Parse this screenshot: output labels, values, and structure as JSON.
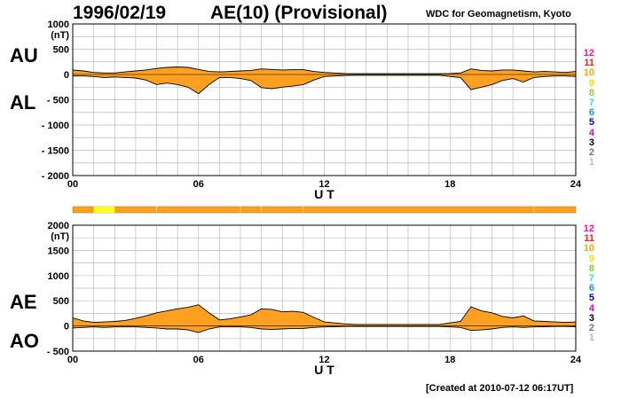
{
  "header": {
    "date": "1996/02/19",
    "title": "AE(10) (Provisional)",
    "source": "WDC for Geomagnetism, Kyoto",
    "created": "[Created at 2010-07-12 06:17UT]"
  },
  "colors": {
    "fill": "#ffa020",
    "grid": "#bbbbbb",
    "status_bar": "#ffa020",
    "status_highlight": "#ffff20"
  },
  "legend": {
    "items": [
      {
        "label": "12",
        "color": "#ff1493"
      },
      {
        "label": "11",
        "color": "#ff2020"
      },
      {
        "label": "10",
        "color": "#ffa500"
      },
      {
        "label": "9",
        "color": "#ffdd00"
      },
      {
        "label": "8",
        "color": "#9acd32"
      },
      {
        "label": "7",
        "color": "#40e0d0"
      },
      {
        "label": "6",
        "color": "#1e90ff"
      },
      {
        "label": "5",
        "color": "#0000cd"
      },
      {
        "label": "4",
        "color": "#dd00dd"
      },
      {
        "label": "3",
        "color": "#000000"
      },
      {
        "label": "2",
        "color": "#777777"
      },
      {
        "label": "1",
        "color": "#bbbbbb"
      }
    ]
  },
  "chart_data": [
    {
      "type": "area",
      "name": "AU/AL",
      "label_upper": "AU",
      "label_lower": "AL",
      "unit": "(nT)",
      "xlabel": "U T",
      "xlim": [
        0,
        24
      ],
      "ylim": [
        -2000,
        1000
      ],
      "yticks": [
        1000,
        500,
        0,
        -500,
        -1000,
        -1500,
        -2000
      ],
      "ytick_labels": [
        "1000",
        "500",
        "0",
        "- 500",
        "- 1000",
        "- 1500",
        "- 2000"
      ],
      "xticks": [
        0,
        6,
        12,
        18,
        24
      ],
      "xtick_labels": [
        "00",
        "06",
        "12",
        "18",
        "24"
      ],
      "grid": true,
      "x": [
        0,
        0.5,
        1,
        1.5,
        2,
        2.5,
        3,
        3.5,
        4,
        4.5,
        5,
        5.5,
        6,
        6.5,
        7,
        7.5,
        8,
        8.5,
        9,
        9.5,
        10,
        10.5,
        11,
        11.5,
        12,
        12.5,
        13,
        13.5,
        14,
        14.5,
        15,
        15.5,
        16,
        16.5,
        17,
        17.5,
        18,
        18.5,
        19,
        19.5,
        20,
        20.5,
        21,
        21.5,
        22,
        22.5,
        23,
        23.5,
        24
      ],
      "upper": [
        90,
        70,
        40,
        30,
        30,
        50,
        70,
        90,
        120,
        140,
        150,
        140,
        100,
        60,
        50,
        60,
        70,
        80,
        110,
        100,
        90,
        95,
        95,
        60,
        40,
        30,
        20,
        15,
        15,
        15,
        15,
        15,
        15,
        15,
        15,
        15,
        20,
        30,
        110,
        80,
        70,
        90,
        90,
        70,
        50,
        60,
        50,
        40,
        60
      ],
      "lower": [
        -30,
        -30,
        -40,
        -60,
        -50,
        -60,
        -70,
        -110,
        -200,
        -170,
        -200,
        -250,
        -380,
        -200,
        -60,
        -60,
        -80,
        -120,
        -260,
        -280,
        -250,
        -230,
        -200,
        -110,
        -40,
        -30,
        -20,
        -15,
        -15,
        -15,
        -15,
        -15,
        -15,
        -15,
        -15,
        -15,
        -40,
        -60,
        -300,
        -250,
        -200,
        -120,
        -80,
        -150,
        -60,
        -40,
        -30,
        -30,
        -40
      ]
    },
    {
      "type": "area",
      "name": "AE/AO",
      "label_upper": "AE",
      "label_lower": "AO",
      "unit": "(nT)",
      "xlabel": "U T",
      "xlim": [
        0,
        24
      ],
      "ylim": [
        -500,
        2000
      ],
      "yticks": [
        2000,
        1500,
        1000,
        500,
        0,
        -500
      ],
      "ytick_labels": [
        "2000",
        "1500",
        "1000",
        "500",
        "0",
        "- 500"
      ],
      "xticks": [
        0,
        6,
        12,
        18,
        24
      ],
      "xtick_labels": [
        "00",
        "06",
        "12",
        "18",
        "24"
      ],
      "grid": true,
      "x": [
        0,
        0.5,
        1,
        1.5,
        2,
        2.5,
        3,
        3.5,
        4,
        4.5,
        5,
        5.5,
        6,
        6.5,
        7,
        7.5,
        8,
        8.5,
        9,
        9.5,
        10,
        10.5,
        11,
        11.5,
        12,
        12.5,
        13,
        13.5,
        14,
        14.5,
        15,
        15.5,
        16,
        16.5,
        17,
        17.5,
        18,
        18.5,
        19,
        19.5,
        20,
        20.5,
        21,
        21.5,
        22,
        22.5,
        23,
        23.5,
        24
      ],
      "upper": [
        160,
        100,
        70,
        80,
        90,
        110,
        150,
        200,
        260,
        300,
        340,
        370,
        420,
        260,
        120,
        140,
        180,
        220,
        340,
        330,
        280,
        290,
        270,
        170,
        80,
        60,
        40,
        30,
        30,
        30,
        30,
        30,
        30,
        30,
        30,
        30,
        60,
        90,
        380,
        300,
        260,
        190,
        160,
        200,
        100,
        90,
        80,
        70,
        80
      ],
      "lower": [
        -40,
        -30,
        -20,
        -30,
        -20,
        -20,
        -20,
        -30,
        -40,
        -60,
        -60,
        -80,
        -130,
        -60,
        -20,
        -20,
        -20,
        -30,
        -60,
        -70,
        -60,
        -50,
        -50,
        -30,
        -20,
        -15,
        -10,
        -10,
        -10,
        -10,
        -10,
        -10,
        -10,
        -10,
        -10,
        -10,
        -20,
        -30,
        -90,
        -80,
        -60,
        -30,
        -20,
        -30,
        -20,
        -15,
        -10,
        -10,
        -15
      ]
    }
  ],
  "status_bar": {
    "highlight_range": [
      1,
      2
    ],
    "tick_hours": [
      4,
      8,
      9,
      11,
      22
    ]
  }
}
